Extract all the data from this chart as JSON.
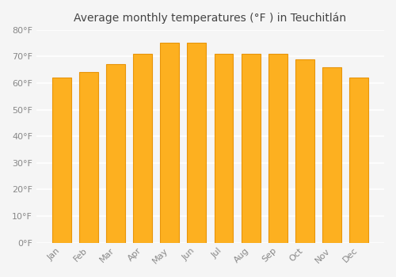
{
  "title": "Average monthly temperatures (°F ) in Teuchitlán",
  "months": [
    "Jan",
    "Feb",
    "Mar",
    "Apr",
    "May",
    "Jun",
    "Jul",
    "Aug",
    "Sep",
    "Oct",
    "Nov",
    "Dec"
  ],
  "values": [
    62,
    64,
    67,
    71,
    75,
    75,
    71,
    71,
    71,
    69,
    66,
    62
  ],
  "bar_color": "#FDB020",
  "bar_edge_color": "#E8950A",
  "background_color": "#F5F5F5",
  "grid_color": "#FFFFFF",
  "ylim": [
    0,
    80
  ],
  "yticks": [
    0,
    10,
    20,
    30,
    40,
    50,
    60,
    70,
    80
  ],
  "title_fontsize": 10,
  "tick_fontsize": 8,
  "tick_label_color": "#888888"
}
